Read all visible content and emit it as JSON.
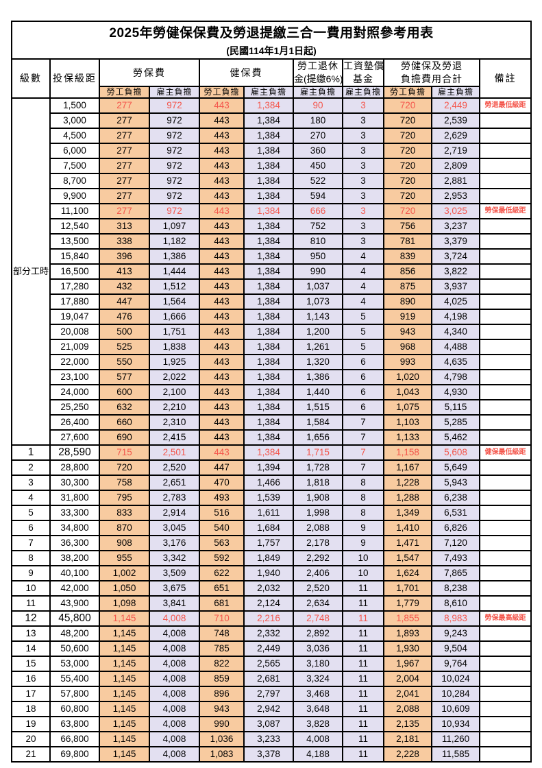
{
  "title": "2025年勞健保保費及勞退提繳三合一費用對照參考用表",
  "subtitle": "(民國114年1月1日起)",
  "colors": {
    "employee_column_bg": "#F8CBA0",
    "employer_column_bg": "#E3E0F1",
    "highlight_text": "#F4564C",
    "border": "#000000"
  },
  "header": {
    "level": "級數",
    "bracket": "投保級距",
    "labor_insurance": "勞保費",
    "health_insurance": "健保費",
    "pension_line1": "勞工退休",
    "pension_line2": "金(提繳6%)",
    "wage_fund_line1": "工資墊償",
    "wage_fund_line2": "基金",
    "total_line1": "勞健保及勞退",
    "total_line2": "負擔費用合計",
    "remark": "備註",
    "employee_share": "勞工負擔",
    "employer_share": "雇主負擔"
  },
  "table": {
    "part_time_label": "部分工時",
    "part_time_rowspan": 23,
    "columns": [
      "level",
      "bracket",
      "labor_employee",
      "labor_employer",
      "health_employee",
      "health_employer",
      "pension_employer",
      "wage_fund_employer",
      "total_employee",
      "total_employer",
      "remark"
    ],
    "rows": [
      {
        "level": "",
        "bracket": "1,500",
        "cells": [
          "277",
          "972",
          "443",
          "1,384",
          "90",
          "3",
          "720",
          "2,449"
        ],
        "remark": "勞退最低級距",
        "hl": true,
        "emph": false
      },
      {
        "level": "",
        "bracket": "3,000",
        "cells": [
          "277",
          "972",
          "443",
          "1,384",
          "180",
          "3",
          "720",
          "2,539"
        ],
        "remark": "",
        "hl": false,
        "emph": false
      },
      {
        "level": "",
        "bracket": "4,500",
        "cells": [
          "277",
          "972",
          "443",
          "1,384",
          "270",
          "3",
          "720",
          "2,629"
        ],
        "remark": "",
        "hl": false,
        "emph": false
      },
      {
        "level": "",
        "bracket": "6,000",
        "cells": [
          "277",
          "972",
          "443",
          "1,384",
          "360",
          "3",
          "720",
          "2,719"
        ],
        "remark": "",
        "hl": false,
        "emph": false
      },
      {
        "level": "",
        "bracket": "7,500",
        "cells": [
          "277",
          "972",
          "443",
          "1,384",
          "450",
          "3",
          "720",
          "2,809"
        ],
        "remark": "",
        "hl": false,
        "emph": false
      },
      {
        "level": "",
        "bracket": "8,700",
        "cells": [
          "277",
          "972",
          "443",
          "1,384",
          "522",
          "3",
          "720",
          "2,881"
        ],
        "remark": "",
        "hl": false,
        "emph": false
      },
      {
        "level": "",
        "bracket": "9,900",
        "cells": [
          "277",
          "972",
          "443",
          "1,384",
          "594",
          "3",
          "720",
          "2,953"
        ],
        "remark": "",
        "hl": false,
        "emph": false
      },
      {
        "level": "",
        "bracket": "11,100",
        "cells": [
          "277",
          "972",
          "443",
          "1,384",
          "666",
          "3",
          "720",
          "3,025"
        ],
        "remark": "勞保最低級距",
        "hl": true,
        "emph": false
      },
      {
        "level": "",
        "bracket": "12,540",
        "cells": [
          "313",
          "1,097",
          "443",
          "1,384",
          "752",
          "3",
          "756",
          "3,237"
        ],
        "remark": "",
        "hl": false,
        "emph": false
      },
      {
        "level": "",
        "bracket": "13,500",
        "cells": [
          "338",
          "1,182",
          "443",
          "1,384",
          "810",
          "3",
          "781",
          "3,379"
        ],
        "remark": "",
        "hl": false,
        "emph": false
      },
      {
        "level": "",
        "bracket": "15,840",
        "cells": [
          "396",
          "1,386",
          "443",
          "1,384",
          "950",
          "4",
          "839",
          "3,724"
        ],
        "remark": "",
        "hl": false,
        "emph": false
      },
      {
        "level": "",
        "bracket": "16,500",
        "cells": [
          "413",
          "1,444",
          "443",
          "1,384",
          "990",
          "4",
          "856",
          "3,822"
        ],
        "remark": "",
        "hl": false,
        "emph": false
      },
      {
        "level": "",
        "bracket": "17,280",
        "cells": [
          "432",
          "1,512",
          "443",
          "1,384",
          "1,037",
          "4",
          "875",
          "3,937"
        ],
        "remark": "",
        "hl": false,
        "emph": false
      },
      {
        "level": "",
        "bracket": "17,880",
        "cells": [
          "447",
          "1,564",
          "443",
          "1,384",
          "1,073",
          "4",
          "890",
          "4,025"
        ],
        "remark": "",
        "hl": false,
        "emph": false
      },
      {
        "level": "",
        "bracket": "19,047",
        "cells": [
          "476",
          "1,666",
          "443",
          "1,384",
          "1,143",
          "5",
          "919",
          "4,198"
        ],
        "remark": "",
        "hl": false,
        "emph": false
      },
      {
        "level": "",
        "bracket": "20,008",
        "cells": [
          "500",
          "1,751",
          "443",
          "1,384",
          "1,200",
          "5",
          "943",
          "4,340"
        ],
        "remark": "",
        "hl": false,
        "emph": false
      },
      {
        "level": "",
        "bracket": "21,009",
        "cells": [
          "525",
          "1,838",
          "443",
          "1,384",
          "1,261",
          "5",
          "968",
          "4,488"
        ],
        "remark": "",
        "hl": false,
        "emph": false
      },
      {
        "level": "",
        "bracket": "22,000",
        "cells": [
          "550",
          "1,925",
          "443",
          "1,384",
          "1,320",
          "6",
          "993",
          "4,635"
        ],
        "remark": "",
        "hl": false,
        "emph": false
      },
      {
        "level": "",
        "bracket": "23,100",
        "cells": [
          "577",
          "2,022",
          "443",
          "1,384",
          "1,386",
          "6",
          "1,020",
          "4,798"
        ],
        "remark": "",
        "hl": false,
        "emph": false
      },
      {
        "level": "",
        "bracket": "24,000",
        "cells": [
          "600",
          "2,100",
          "443",
          "1,384",
          "1,440",
          "6",
          "1,043",
          "4,930"
        ],
        "remark": "",
        "hl": false,
        "emph": false
      },
      {
        "level": "",
        "bracket": "25,250",
        "cells": [
          "632",
          "2,210",
          "443",
          "1,384",
          "1,515",
          "6",
          "1,075",
          "5,115"
        ],
        "remark": "",
        "hl": false,
        "emph": false
      },
      {
        "level": "",
        "bracket": "26,400",
        "cells": [
          "660",
          "2,310",
          "443",
          "1,384",
          "1,584",
          "7",
          "1,103",
          "5,285"
        ],
        "remark": "",
        "hl": false,
        "emph": false
      },
      {
        "level": "",
        "bracket": "27,600",
        "cells": [
          "690",
          "2,415",
          "443",
          "1,384",
          "1,656",
          "7",
          "1,133",
          "5,462"
        ],
        "remark": "",
        "hl": false,
        "emph": false
      },
      {
        "level": "1",
        "bracket": "28,590",
        "cells": [
          "715",
          "2,501",
          "443",
          "1,384",
          "1,715",
          "7",
          "1,158",
          "5,608"
        ],
        "remark": "健保最低級距",
        "hl": true,
        "emph": true
      },
      {
        "level": "2",
        "bracket": "28,800",
        "cells": [
          "720",
          "2,520",
          "447",
          "1,394",
          "1,728",
          "7",
          "1,167",
          "5,649"
        ],
        "remark": "",
        "hl": false,
        "emph": false
      },
      {
        "level": "3",
        "bracket": "30,300",
        "cells": [
          "758",
          "2,651",
          "470",
          "1,466",
          "1,818",
          "8",
          "1,228",
          "5,943"
        ],
        "remark": "",
        "hl": false,
        "emph": false
      },
      {
        "level": "4",
        "bracket": "31,800",
        "cells": [
          "795",
          "2,783",
          "493",
          "1,539",
          "1,908",
          "8",
          "1,288",
          "6,238"
        ],
        "remark": "",
        "hl": false,
        "emph": false
      },
      {
        "level": "5",
        "bracket": "33,300",
        "cells": [
          "833",
          "2,914",
          "516",
          "1,611",
          "1,998",
          "8",
          "1,349",
          "6,531"
        ],
        "remark": "",
        "hl": false,
        "emph": false
      },
      {
        "level": "6",
        "bracket": "34,800",
        "cells": [
          "870",
          "3,045",
          "540",
          "1,684",
          "2,088",
          "9",
          "1,410",
          "6,826"
        ],
        "remark": "",
        "hl": false,
        "emph": false
      },
      {
        "level": "7",
        "bracket": "36,300",
        "cells": [
          "908",
          "3,176",
          "563",
          "1,757",
          "2,178",
          "9",
          "1,471",
          "7,120"
        ],
        "remark": "",
        "hl": false,
        "emph": false
      },
      {
        "level": "8",
        "bracket": "38,200",
        "cells": [
          "955",
          "3,342",
          "592",
          "1,849",
          "2,292",
          "10",
          "1,547",
          "7,493"
        ],
        "remark": "",
        "hl": false,
        "emph": false
      },
      {
        "level": "9",
        "bracket": "40,100",
        "cells": [
          "1,002",
          "3,509",
          "622",
          "1,940",
          "2,406",
          "10",
          "1,624",
          "7,865"
        ],
        "remark": "",
        "hl": false,
        "emph": false
      },
      {
        "level": "10",
        "bracket": "42,000",
        "cells": [
          "1,050",
          "3,675",
          "651",
          "2,032",
          "2,520",
          "11",
          "1,701",
          "8,238"
        ],
        "remark": "",
        "hl": false,
        "emph": false
      },
      {
        "level": "11",
        "bracket": "43,900",
        "cells": [
          "1,098",
          "3,841",
          "681",
          "2,124",
          "2,634",
          "11",
          "1,779",
          "8,610"
        ],
        "remark": "",
        "hl": false,
        "emph": false
      },
      {
        "level": "12",
        "bracket": "45,800",
        "cells": [
          "1,145",
          "4,008",
          "710",
          "2,216",
          "2,748",
          "11",
          "1,855",
          "8,983"
        ],
        "remark": "勞保最高級距",
        "hl": true,
        "emph": true
      },
      {
        "level": "13",
        "bracket": "48,200",
        "cells": [
          "1,145",
          "4,008",
          "748",
          "2,332",
          "2,892",
          "11",
          "1,893",
          "9,243"
        ],
        "remark": "",
        "hl": false,
        "emph": false
      },
      {
        "level": "14",
        "bracket": "50,600",
        "cells": [
          "1,145",
          "4,008",
          "785",
          "2,449",
          "3,036",
          "11",
          "1,930",
          "9,504"
        ],
        "remark": "",
        "hl": false,
        "emph": false
      },
      {
        "level": "15",
        "bracket": "53,000",
        "cells": [
          "1,145",
          "4,008",
          "822",
          "2,565",
          "3,180",
          "11",
          "1,967",
          "9,764"
        ],
        "remark": "",
        "hl": false,
        "emph": false
      },
      {
        "level": "16",
        "bracket": "55,400",
        "cells": [
          "1,145",
          "4,008",
          "859",
          "2,681",
          "3,324",
          "11",
          "2,004",
          "10,024"
        ],
        "remark": "",
        "hl": false,
        "emph": false
      },
      {
        "level": "17",
        "bracket": "57,800",
        "cells": [
          "1,145",
          "4,008",
          "896",
          "2,797",
          "3,468",
          "11",
          "2,041",
          "10,284"
        ],
        "remark": "",
        "hl": false,
        "emph": false
      },
      {
        "level": "18",
        "bracket": "60,800",
        "cells": [
          "1,145",
          "4,008",
          "943",
          "2,942",
          "3,648",
          "11",
          "2,088",
          "10,609"
        ],
        "remark": "",
        "hl": false,
        "emph": false
      },
      {
        "level": "19",
        "bracket": "63,800",
        "cells": [
          "1,145",
          "4,008",
          "990",
          "3,087",
          "3,828",
          "11",
          "2,135",
          "10,934"
        ],
        "remark": "",
        "hl": false,
        "emph": false
      },
      {
        "level": "20",
        "bracket": "66,800",
        "cells": [
          "1,145",
          "4,008",
          "1,036",
          "3,233",
          "4,008",
          "11",
          "2,181",
          "11,260"
        ],
        "remark": "",
        "hl": false,
        "emph": false
      },
      {
        "level": "21",
        "bracket": "69,800",
        "cells": [
          "1,145",
          "4,008",
          "1,083",
          "3,378",
          "4,188",
          "11",
          "2,228",
          "11,585"
        ],
        "remark": "",
        "hl": false,
        "emph": false
      }
    ]
  }
}
